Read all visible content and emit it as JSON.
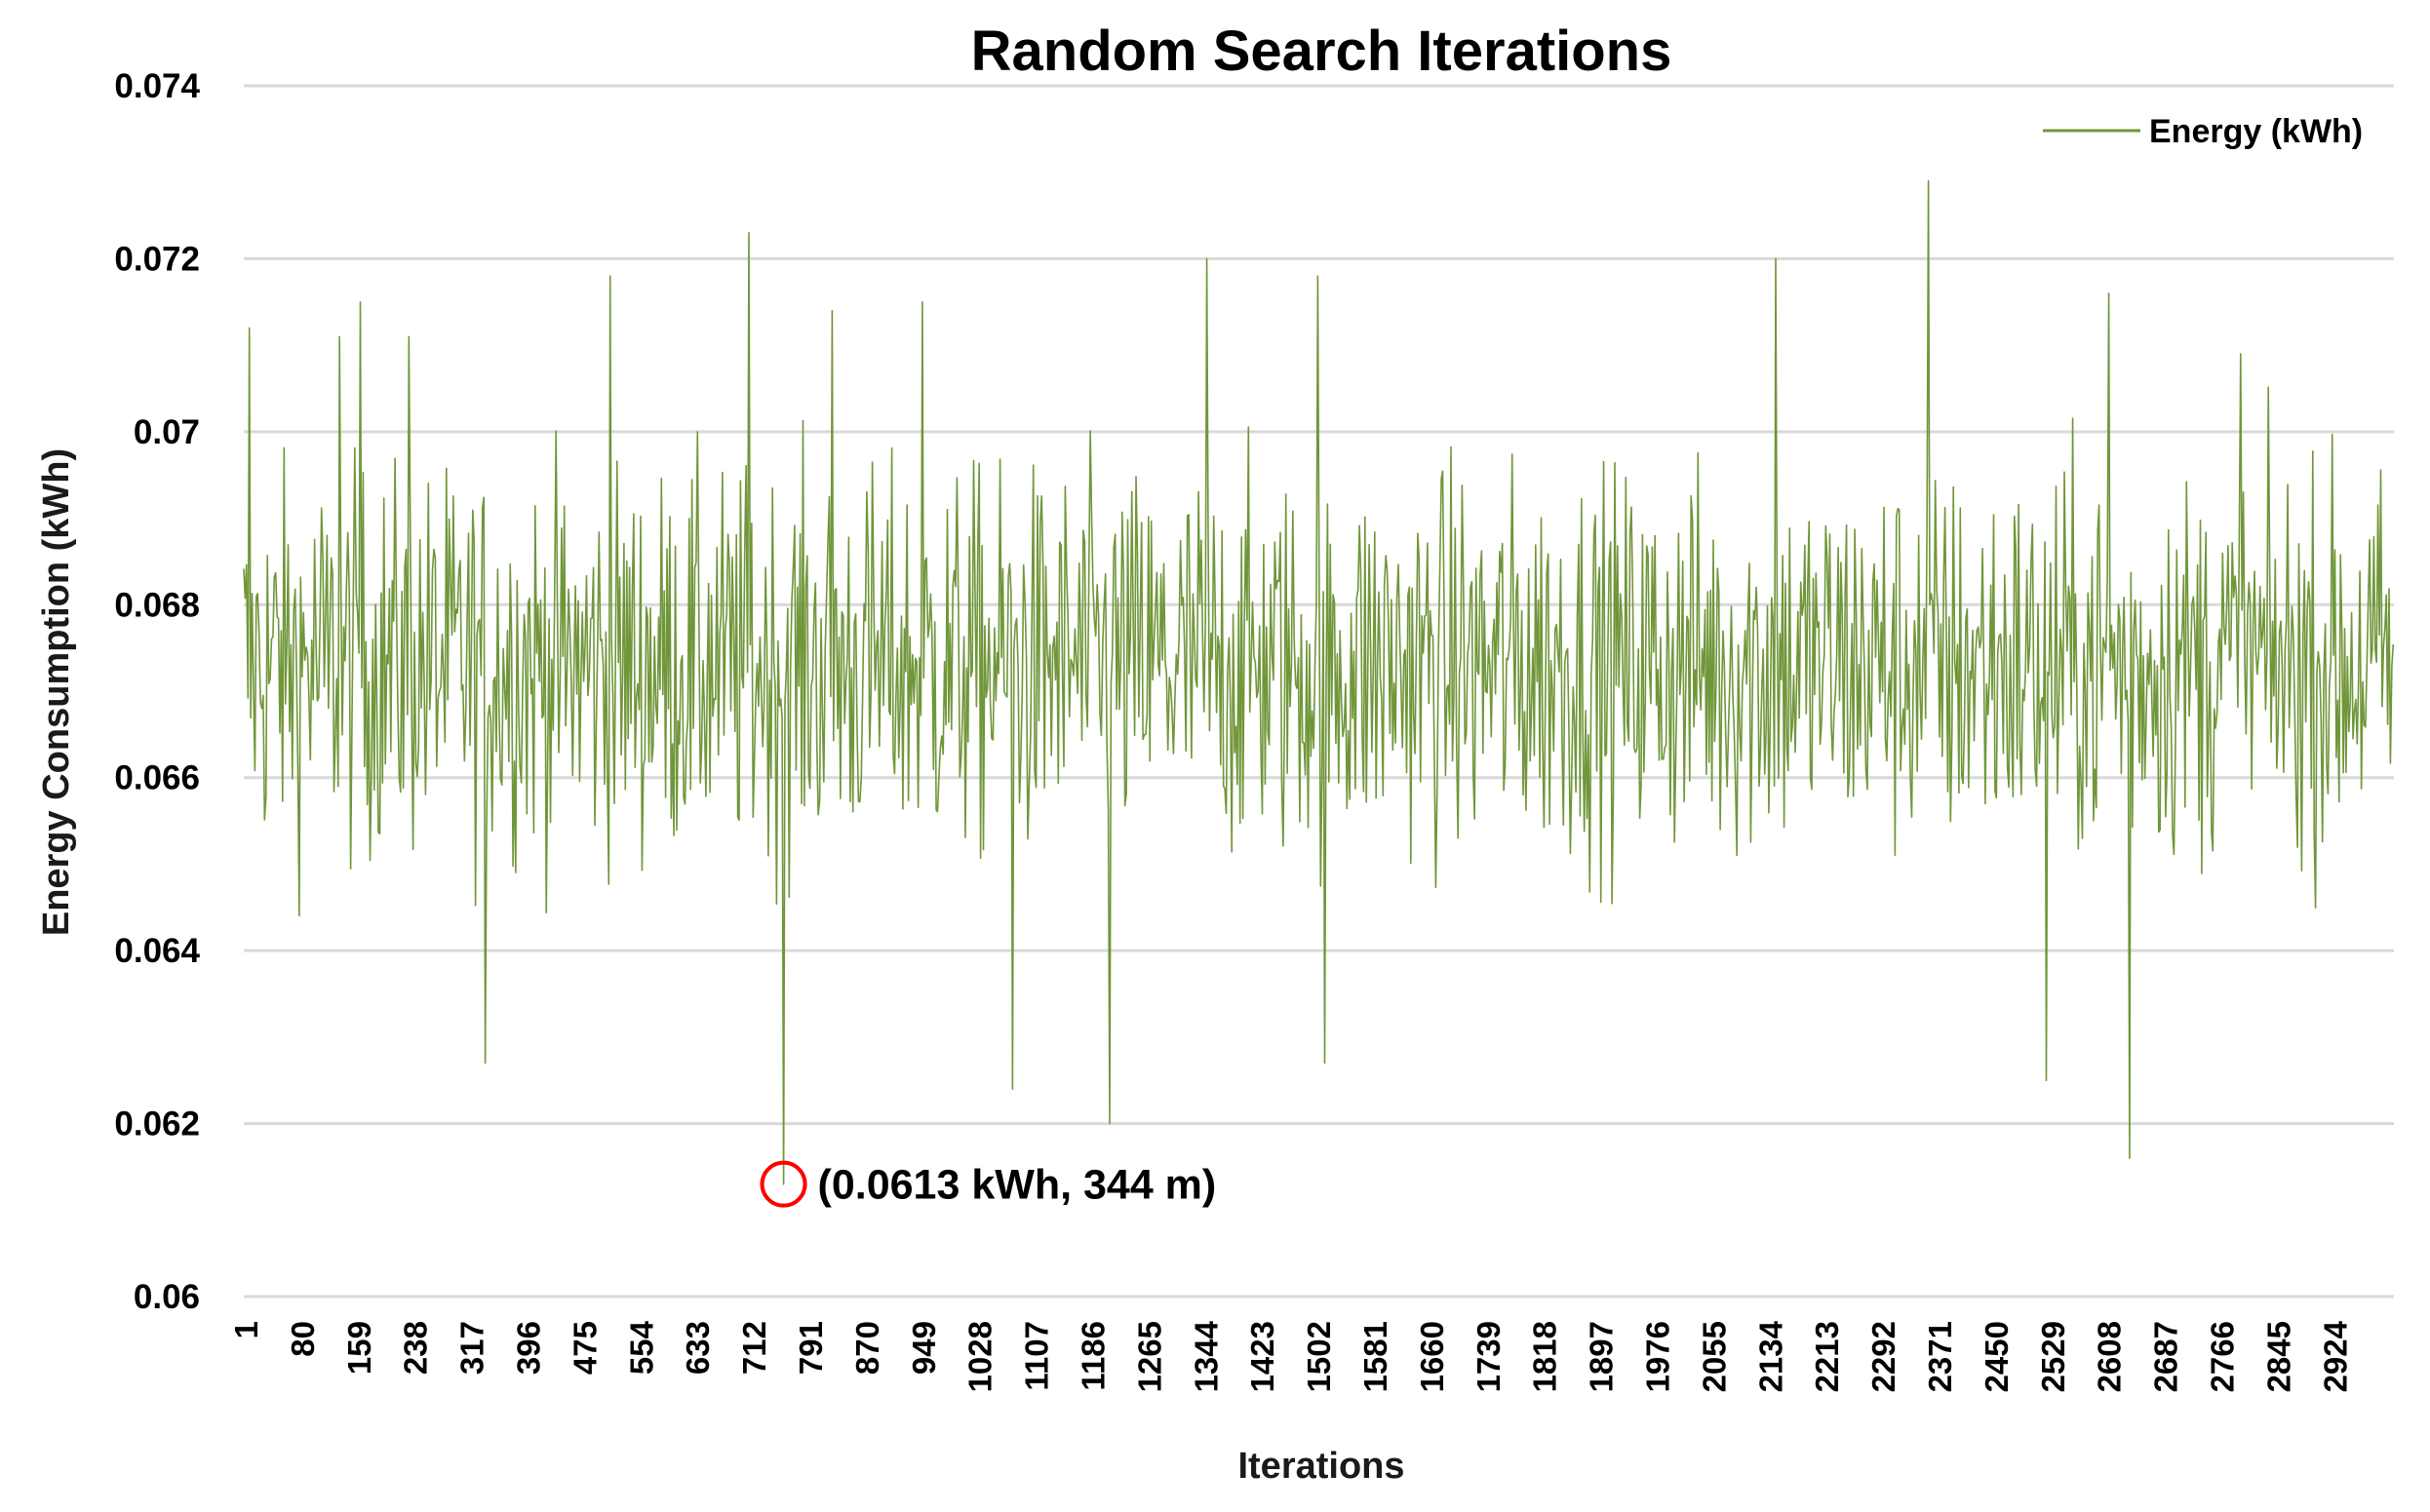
{
  "chart_data": {
    "type": "line",
    "title": "Random Search Iterations",
    "xlabel": "Iterations",
    "ylabel": "Energy Consumption (kWh)",
    "ylim": [
      0.06,
      0.074
    ],
    "y_ticks": [
      "0.074",
      "0.072",
      "0.07",
      "0.068",
      "0.066",
      "0.064",
      "0.062",
      "0.06"
    ],
    "x_ticks": [
      "1",
      "80",
      "159",
      "238",
      "317",
      "396",
      "475",
      "554",
      "633",
      "712",
      "791",
      "870",
      "949",
      "1028",
      "1107",
      "1186",
      "1265",
      "1344",
      "1423",
      "1502",
      "1581",
      "1660",
      "1739",
      "1818",
      "1897",
      "1976",
      "2055",
      "2134",
      "2213",
      "2292",
      "2371",
      "2450",
      "2529",
      "2608",
      "2687",
      "2766",
      "2845",
      "2924"
    ],
    "x_range": [
      1,
      3100
    ],
    "grid": "horizontal",
    "legend_position": "top-right",
    "series": [
      {
        "name": "Energy (kWh)",
        "color": "#70963a",
        "noise": {
          "mean": 0.0673,
          "spread": 0.0011
        },
        "peaks": [
          {
            "x": 10,
            "y": 0.0712
          },
          {
            "x": 140,
            "y": 0.0711
          },
          {
            "x": 170,
            "y": 0.0715
          },
          {
            "x": 240,
            "y": 0.0711
          },
          {
            "x": 350,
            "y": 0.0627
          },
          {
            "x": 530,
            "y": 0.0718
          },
          {
            "x": 730,
            "y": 0.0723
          },
          {
            "x": 850,
            "y": 0.0714
          },
          {
            "x": 980,
            "y": 0.0715
          },
          {
            "x": 1110,
            "y": 0.0624
          },
          {
            "x": 1250,
            "y": 0.062
          },
          {
            "x": 1390,
            "y": 0.072
          },
          {
            "x": 1550,
            "y": 0.0718
          },
          {
            "x": 1560,
            "y": 0.0627
          },
          {
            "x": 2210,
            "y": 0.072
          },
          {
            "x": 2430,
            "y": 0.0729
          },
          {
            "x": 2600,
            "y": 0.0625
          },
          {
            "x": 2690,
            "y": 0.0716
          },
          {
            "x": 2720,
            "y": 0.0616
          },
          {
            "x": 2880,
            "y": 0.0709
          }
        ]
      }
    ],
    "annotations": [
      {
        "text": "(0.0613 kWh, 344 m)",
        "x": 779,
        "y": 0.0613,
        "marker": "circle",
        "marker_color": "#ff0000"
      }
    ]
  }
}
